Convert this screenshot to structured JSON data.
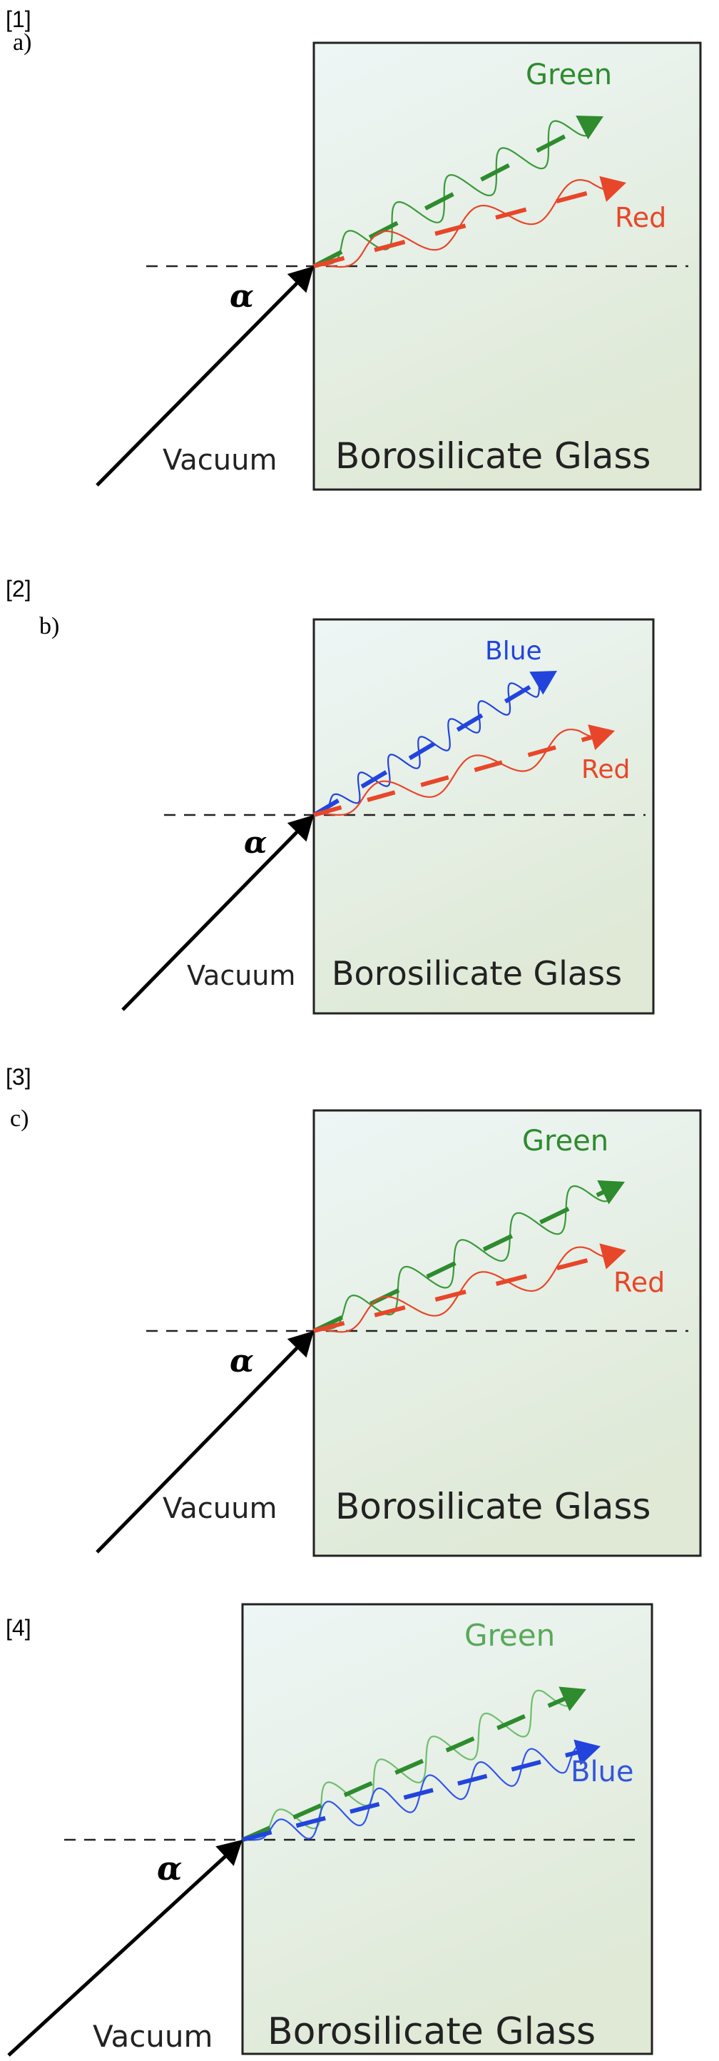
{
  "panels": [
    {
      "label": "[1]",
      "sub": "a)",
      "alpha": "α",
      "vacuum": "Vacuum",
      "medium": "Borosilicate Glass",
      "rays": [
        {
          "name": "Green",
          "color": "#2e8b2e",
          "dash_color": "#2e8b2e",
          "wave_color": "#3a9a3a"
        },
        {
          "name": "Red",
          "color": "#e8462a",
          "dash_color": "#e8462a",
          "wave_color": "#e8462a"
        }
      ]
    },
    {
      "label": "[2]",
      "sub": "b)",
      "alpha": "α",
      "vacuum": "Vacuum",
      "medium": "Borosilicate Glass",
      "rays": [
        {
          "name": "Blue",
          "color": "#2244dd",
          "dash_color": "#2244dd",
          "wave_color": "#2244dd"
        },
        {
          "name": "Red",
          "color": "#e8462a",
          "dash_color": "#e8462a",
          "wave_color": "#e8462a"
        }
      ]
    },
    {
      "label": "[3]",
      "sub": "c)",
      "alpha": "α",
      "vacuum": "Vacuum",
      "medium": "Borosilicate Glass",
      "rays": [
        {
          "name": "Green",
          "color": "#2e8b2e",
          "dash_color": "#2e8b2e",
          "wave_color": "#3a9a3a"
        },
        {
          "name": "Red",
          "color": "#e8462a",
          "dash_color": "#e8462a",
          "wave_color": "#e8462a"
        }
      ]
    },
    {
      "label": "[4]",
      "sub": "",
      "alpha": "α",
      "vacuum": "Vacuum",
      "medium": "Borosilicate Glass",
      "rays": [
        {
          "name": "Green",
          "color": "#5aa85a",
          "dash_color": "#2e8b2e",
          "wave_color": "#6fbf6f"
        },
        {
          "name": "Blue",
          "color": "#3355dd",
          "dash_color": "#2244dd",
          "wave_color": "#3355ee"
        }
      ]
    }
  ]
}
